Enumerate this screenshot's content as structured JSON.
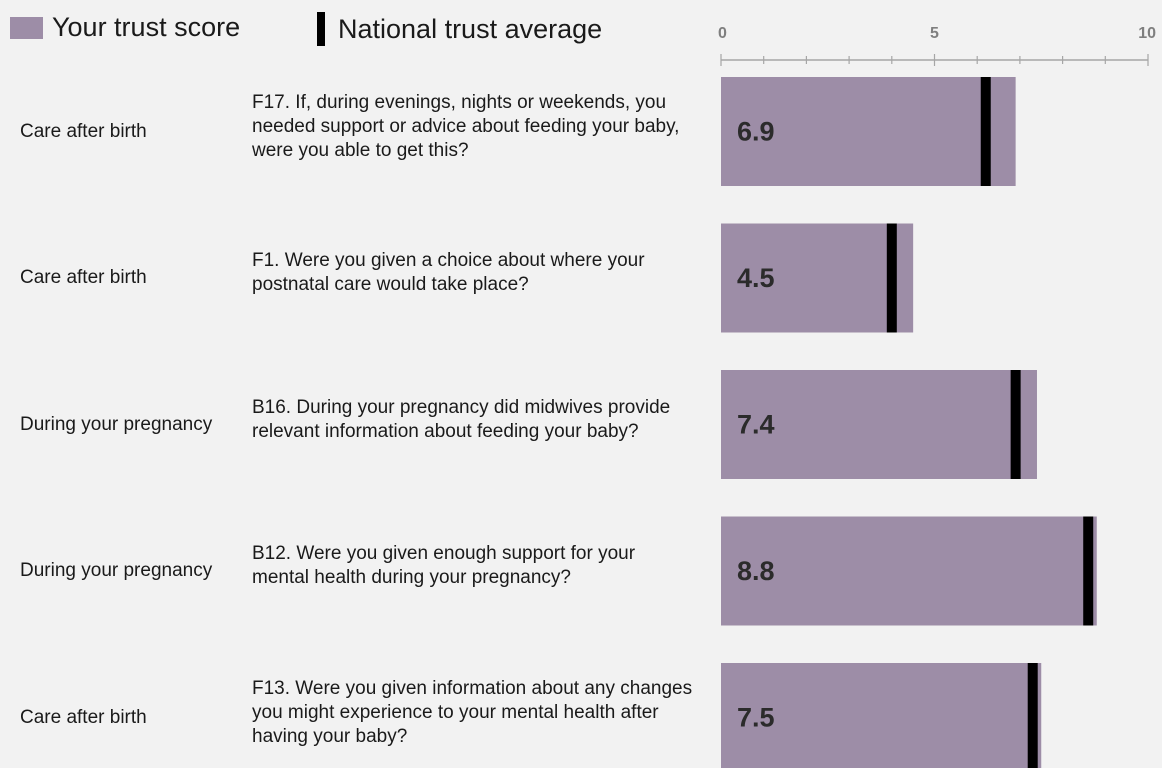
{
  "legend": {
    "trust_label": "Your trust score",
    "national_label": "National trust average"
  },
  "colors": {
    "trust_bar": "#9d8da7",
    "national_marker": "#000000",
    "axis": "#a6a6a6",
    "background": "#f2f2f2"
  },
  "chart_data": {
    "type": "bar",
    "orientation": "horizontal",
    "xlim": [
      0,
      10
    ],
    "major_ticks": [
      0,
      5,
      10
    ],
    "minor_ticks": [
      0,
      1,
      2,
      3,
      4,
      5,
      6,
      7,
      8,
      9,
      10
    ],
    "legend_position": "top-left",
    "rows": [
      {
        "category": "Care after birth",
        "question": "F17. If, during evenings, nights or weekends, you needed support or advice about feeding your baby, were you able to get this?",
        "trust_score": 6.9,
        "value_label": "6.9",
        "national_average": 6.2
      },
      {
        "category": "Care after birth",
        "question": "F1. Were you given a choice about where your postnatal care would take place?",
        "trust_score": 4.5,
        "value_label": "4.5",
        "national_average": 4.0
      },
      {
        "category": "During your pregnancy",
        "question": "B16. During your pregnancy did midwives provide relevant information about feeding your baby?",
        "trust_score": 7.4,
        "value_label": "7.4",
        "national_average": 6.9
      },
      {
        "category": "During your pregnancy",
        "question": "B12. Were you given enough support for your mental health during your pregnancy?",
        "trust_score": 8.8,
        "value_label": "8.8",
        "national_average": 8.6
      },
      {
        "category": "Care after birth",
        "question": "F13. Were you given information about any changes you might experience to your mental health after having your baby?",
        "trust_score": 7.5,
        "value_label": "7.5",
        "national_average": 7.3
      }
    ]
  }
}
